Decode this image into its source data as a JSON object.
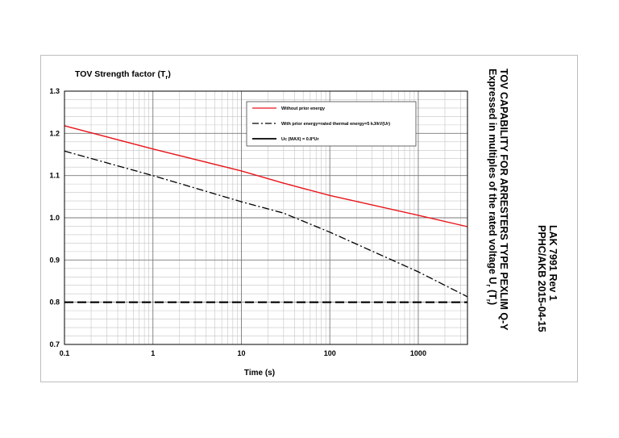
{
  "chart_data": {
    "type": "line",
    "ylabel_main": "TOV Strength factor (T",
    "ylabel_sub": "r",
    "ylabel_close": ")",
    "xlabel": "Time (s)",
    "x_scale": "log",
    "xlim": [
      0.1,
      3600
    ],
    "ylim": [
      0.7,
      1.3
    ],
    "x_ticks": [
      0.1,
      1,
      10,
      100,
      1000
    ],
    "x_tick_labels": [
      "0.1",
      "1",
      "10",
      "100",
      "1000"
    ],
    "y_ticks": [
      0.7,
      0.8,
      0.9,
      1.0,
      1.1,
      1.2,
      1.3
    ],
    "y_tick_labels": [
      "0.7",
      "0.8",
      "0.9",
      "1.0",
      "1.1",
      "1.2",
      "1.3"
    ],
    "grid": true,
    "legend_position": "top-right",
    "series": [
      {
        "name": "Without prior energy",
        "color": "#e8141a",
        "dash": "solid",
        "x": [
          0.1,
          1,
          10,
          30,
          100,
          1000,
          3600
        ],
        "y": [
          1.218,
          1.163,
          1.111,
          1.082,
          1.053,
          1.006,
          0.979
        ]
      },
      {
        "name": "With prior energy=rated thermal energy=5 kJ/kV(Ur)",
        "color": "#000000",
        "dash": "dashdot",
        "x": [
          0.1,
          1,
          10,
          30,
          100,
          1000,
          3600
        ],
        "y": [
          1.158,
          1.1,
          1.038,
          1.011,
          0.966,
          0.872,
          0.813
        ]
      },
      {
        "name": "Uc (MAX) = 0.8*Ur",
        "color": "#000000",
        "dash": "longdash",
        "x": [
          0.1,
          3600
        ],
        "y": [
          0.8,
          0.8
        ]
      }
    ]
  },
  "side_text": {
    "title_line1": "TOV CAPABILITY FOR ARRESTERS TYPE PEXLIM Q-Y",
    "title_line2_prefix": "Expressed in multiples of the rated voltage U",
    "title_line2_sub": "r",
    "title_line2_mid": " (T",
    "title_line2_sub2": "r",
    "title_line2_end": ")",
    "doc_number": "LAK 7991 Rev 1",
    "doc_ref": "PPHC/AKB 2015-04-15"
  }
}
